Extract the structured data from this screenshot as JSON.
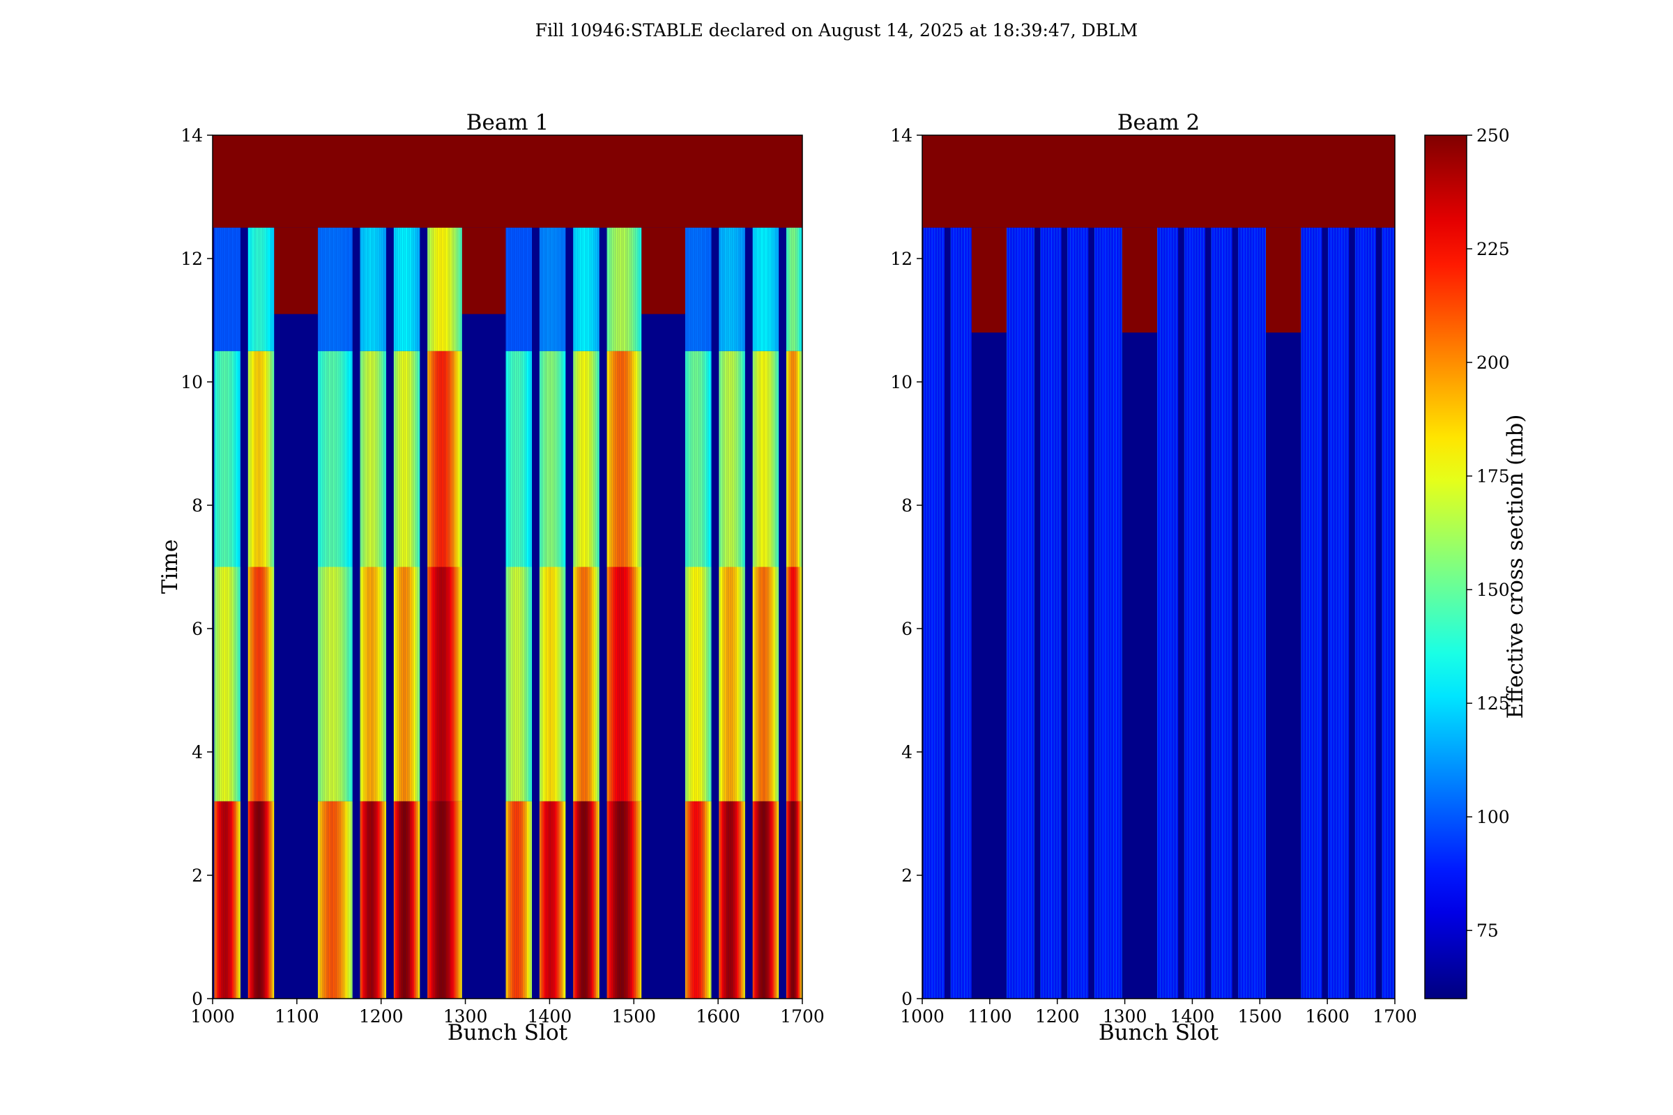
{
  "figure": {
    "suptitle": "Fill 10946:STABLE declared on August 14, 2025 at 18:39:47, DBLM"
  },
  "chart_data": [
    {
      "type": "heatmap",
      "title": "Beam 1",
      "xlabel": "Bunch Slot",
      "ylabel": "Time",
      "xlim": [
        1000,
        1700
      ],
      "ylim": [
        0,
        14
      ],
      "xticks": [
        1000,
        1100,
        1200,
        1300,
        1400,
        1500,
        1600,
        1700
      ],
      "yticks": [
        0,
        2,
        4,
        6,
        8,
        10,
        12,
        14
      ],
      "xtick_labels": [
        "1000",
        "1100",
        "1200",
        "1300",
        "1400",
        "1500",
        "1600",
        "1700"
      ],
      "ytick_labels": [
        "0",
        "2",
        "4",
        "6",
        "8",
        "10",
        "12",
        "14"
      ],
      "colormap": "jet",
      "value_range": [
        60,
        250
      ],
      "background_value": 62,
      "filled_bunch_trains": [
        {
          "start": 1002,
          "end": 1033,
          "peak_early": 240,
          "peak_mid": 175,
          "peak_late": 120,
          "dump_start_time": 12.5
        },
        {
          "start": 1042,
          "end": 1073,
          "peak_early": 250,
          "peak_mid": 215,
          "peak_late": 160,
          "dump_start_time": 12.5
        },
        {
          "start": 1125,
          "end": 1166,
          "peak_early": 210,
          "peak_mid": 170,
          "peak_late": 125,
          "dump_start_time": 12.5
        },
        {
          "start": 1175,
          "end": 1206,
          "peak_early": 245,
          "peak_mid": 195,
          "peak_late": 145,
          "dump_start_time": 12.5
        },
        {
          "start": 1215,
          "end": 1246,
          "peak_early": 250,
          "peak_mid": 200,
          "peak_late": 150,
          "dump_start_time": 12.5
        },
        {
          "start": 1255,
          "end": 1296,
          "peak_early": 250,
          "peak_mid": 240,
          "peak_late": 200,
          "dump_start_time": 12.5
        },
        {
          "start": 1348,
          "end": 1379,
          "peak_early": 215,
          "peak_mid": 170,
          "peak_late": 120,
          "dump_start_time": 12.5
        },
        {
          "start": 1388,
          "end": 1419,
          "peak_early": 235,
          "peak_mid": 185,
          "peak_late": 130,
          "dump_start_time": 12.5
        },
        {
          "start": 1428,
          "end": 1459,
          "peak_early": 250,
          "peak_mid": 205,
          "peak_late": 150,
          "dump_start_time": 12.5
        },
        {
          "start": 1468,
          "end": 1509,
          "peak_early": 250,
          "peak_mid": 230,
          "peak_late": 185,
          "dump_start_time": 12.5
        },
        {
          "start": 1561,
          "end": 1592,
          "peak_early": 225,
          "peak_mid": 180,
          "peak_late": 125,
          "dump_start_time": 12.5
        },
        {
          "start": 1601,
          "end": 1632,
          "peak_early": 245,
          "peak_mid": 195,
          "peak_late": 140,
          "dump_start_time": 12.5
        },
        {
          "start": 1641,
          "end": 1672,
          "peak_early": 250,
          "peak_mid": 205,
          "peak_late": 150,
          "dump_start_time": 12.5
        },
        {
          "start": 1681,
          "end": 1712,
          "peak_early": 250,
          "peak_mid": 225,
          "peak_late": 175,
          "dump_start_time": 12.5
        }
      ],
      "dump_region": {
        "time_from": 12.5,
        "time_to": 14,
        "value": 250
      },
      "empty_gap_saturation_from_time": 11.1
    },
    {
      "type": "heatmap",
      "title": "Beam 2",
      "xlabel": "Bunch Slot",
      "ylabel": "",
      "xlim": [
        1000,
        1700
      ],
      "ylim": [
        0,
        14
      ],
      "xticks": [
        1000,
        1100,
        1200,
        1300,
        1400,
        1500,
        1600,
        1700
      ],
      "yticks": [
        0,
        2,
        4,
        6,
        8,
        10,
        12,
        14
      ],
      "xtick_labels": [
        "1000",
        "1100",
        "1200",
        "1300",
        "1400",
        "1500",
        "1600",
        "1700"
      ],
      "ytick_labels": [
        "0",
        "2",
        "4",
        "6",
        "8",
        "10",
        "12",
        "14"
      ],
      "colormap": "jet",
      "value_range": [
        60,
        250
      ],
      "background_value": 62,
      "filled_bunch_trains": [
        {
          "start": 1002,
          "end": 1033,
          "level": 88,
          "dump_start_time": 12.5
        },
        {
          "start": 1042,
          "end": 1073,
          "level": 88,
          "dump_start_time": 12.5
        },
        {
          "start": 1125,
          "end": 1166,
          "level": 88,
          "dump_start_time": 12.5
        },
        {
          "start": 1175,
          "end": 1206,
          "level": 88,
          "dump_start_time": 12.5
        },
        {
          "start": 1215,
          "end": 1246,
          "level": 88,
          "dump_start_time": 12.5
        },
        {
          "start": 1255,
          "end": 1296,
          "level": 88,
          "dump_start_time": 12.5
        },
        {
          "start": 1348,
          "end": 1379,
          "level": 88,
          "dump_start_time": 12.5
        },
        {
          "start": 1388,
          "end": 1419,
          "level": 88,
          "dump_start_time": 12.5
        },
        {
          "start": 1428,
          "end": 1459,
          "level": 88,
          "dump_start_time": 12.5
        },
        {
          "start": 1468,
          "end": 1509,
          "level": 88,
          "dump_start_time": 12.5
        },
        {
          "start": 1561,
          "end": 1592,
          "level": 88,
          "dump_start_time": 12.5
        },
        {
          "start": 1601,
          "end": 1632,
          "level": 88,
          "dump_start_time": 12.5
        },
        {
          "start": 1641,
          "end": 1672,
          "level": 88,
          "dump_start_time": 12.5
        },
        {
          "start": 1681,
          "end": 1712,
          "level": 88,
          "dump_start_time": 12.5
        }
      ],
      "dump_region": {
        "time_from": 12.5,
        "time_to": 14,
        "value": 250
      },
      "empty_gap_saturation_from_time": 10.8
    }
  ],
  "colorbar": {
    "label": "Effective cross section (mb)",
    "range": [
      60,
      250
    ],
    "ticks": [
      75,
      100,
      125,
      150,
      175,
      200,
      225,
      250
    ],
    "tick_labels": [
      "75",
      "100",
      "125",
      "150",
      "175",
      "200",
      "225",
      "250"
    ],
    "colormap": "jet"
  }
}
